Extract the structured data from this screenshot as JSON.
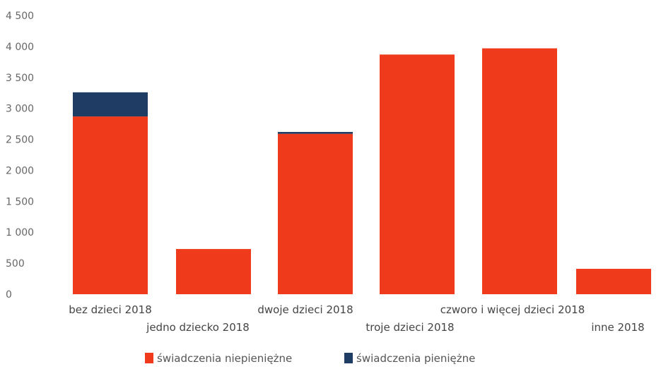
{
  "colors": {
    "niepieniezne": "#f03a1c",
    "pieniezne": "#1f3c64"
  },
  "chart_data": {
    "type": "bar",
    "stacked": true,
    "categories": [
      "bez dzieci 2018",
      "jedno dziecko 2018",
      "dwoje dzieci 2018",
      "troje dzieci 2018",
      "czworo i więcej dzieci 2018",
      "inne 2018"
    ],
    "series": [
      {
        "name": "świadczenia niepieniężne",
        "values": [
          2870,
          730,
          2590,
          3870,
          3970,
          410
        ]
      },
      {
        "name": "świadczenia pieniężne",
        "values": [
          390,
          0,
          30,
          0,
          0,
          0
        ]
      }
    ],
    "ylim": [
      0,
      4500
    ],
    "yticks": [
      0,
      500,
      1000,
      1500,
      2000,
      2500,
      3000,
      3500,
      4000,
      4500
    ],
    "ytick_labels": [
      "0",
      "500",
      "1 000",
      "1 500",
      "2 000",
      "2 500",
      "3 000",
      "3 500",
      "4 000",
      "4 500"
    ],
    "grid": false,
    "legend": "bottom",
    "title": "",
    "xlabel": "",
    "ylabel": ""
  }
}
